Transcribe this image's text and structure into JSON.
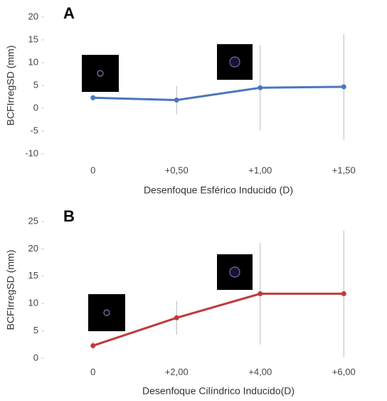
{
  "chart_data": [
    {
      "type": "line",
      "panel_label": "A",
      "ylabel": "BCFIrregSD (mm)",
      "xlabel": "Desenfoque  Esférico Inducido (D)",
      "categories": [
        "0",
        "+0,50",
        "+1,00",
        "+1,50"
      ],
      "values": [
        2.3,
        1.8,
        4.5,
        4.7
      ],
      "errors": [
        0.7,
        3.1,
        9.4,
        11.6
      ],
      "color": "#4a76c0",
      "ylim": [
        -10,
        20
      ],
      "yticks": [
        -10,
        -5,
        0,
        5,
        10,
        15,
        20
      ]
    },
    {
      "type": "line",
      "panel_label": "B",
      "ylabel": "BCFIrregSD (mm)",
      "xlabel": "Desenfoque Cilíndrico Inducido(D)",
      "categories": [
        "0",
        "+2,00",
        "+4,00",
        "+6,00"
      ],
      "values": [
        2.3,
        7.4,
        11.8,
        11.8
      ],
      "errors": [
        0.8,
        3.1,
        9.3,
        11.6
      ],
      "color": "#c0393b",
      "ylim": [
        0,
        25
      ],
      "yticks": [
        0,
        5,
        10,
        15,
        20,
        25
      ]
    }
  ]
}
